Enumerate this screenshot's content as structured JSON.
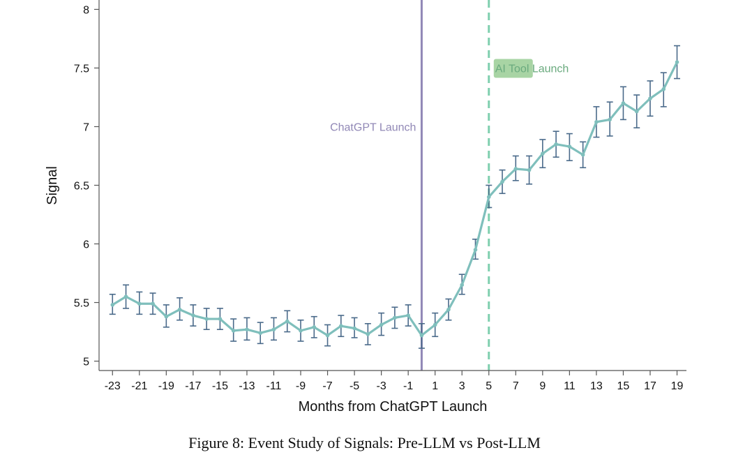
{
  "chart_data": {
    "type": "line",
    "caption": "Figure 8: Event Study of Signals: Pre-LLM vs Post-LLM",
    "xlabel": "Months from ChatGPT Launch",
    "ylabel": "Signal",
    "xlim": [
      -24,
      19.7
    ],
    "ylim": [
      4.92,
      8.08
    ],
    "yticks": [
      5,
      5.5,
      6,
      6.5,
      7,
      7.5,
      8
    ],
    "ytick_labels": [
      "5",
      "5.5",
      "6",
      "6.5",
      "7",
      "7.5",
      "8"
    ],
    "xticks": [
      -23,
      -21,
      -19,
      -17,
      -15,
      -13,
      -11,
      -9,
      -7,
      -5,
      -3,
      -1,
      1,
      3,
      5,
      7,
      9,
      11,
      13,
      15,
      17,
      19
    ],
    "xtick_labels": [
      "-23",
      "-21",
      "-19",
      "-17",
      "-15",
      "-13",
      "-11",
      "-9",
      "-7",
      "-5",
      "-3",
      "-1",
      "1",
      "3",
      "5",
      "7",
      "9",
      "11",
      "13",
      "15",
      "17",
      "19"
    ],
    "grid": false,
    "legend": "none",
    "colors": {
      "line": "#7fbfbc",
      "errorbar": "#4a6a8a",
      "chatgpt": "#9188b6",
      "ai_tool": "#7fcfae",
      "ai_tool_box": "#a8d4a4",
      "ai_tool_text": "#6aaa7e"
    },
    "annotations": [
      {
        "id": "chatgpt",
        "text": "ChatGPT Launch",
        "x": 0,
        "y": 7.0,
        "style": "solid"
      },
      {
        "id": "ai_tool",
        "text": "AI Tool Launch",
        "x": 5,
        "y": 7.5,
        "style": "dashed"
      }
    ],
    "series": [
      {
        "x": [
          -23,
          -22,
          -21,
          -20,
          -19,
          -18,
          -17,
          -16,
          -15,
          -14,
          -13,
          -12,
          -11,
          -10,
          -9,
          -8,
          -7,
          -6,
          -5,
          -4,
          -3,
          -2,
          -1,
          0,
          1,
          2,
          3,
          4,
          5,
          6,
          7,
          8,
          9,
          10,
          11,
          12,
          13,
          14,
          15,
          16,
          17,
          18,
          19
        ],
        "y": [
          5.48,
          5.55,
          5.49,
          5.49,
          5.38,
          5.44,
          5.39,
          5.36,
          5.36,
          5.26,
          5.27,
          5.24,
          5.27,
          5.34,
          5.26,
          5.29,
          5.22,
          5.3,
          5.28,
          5.23,
          5.31,
          5.37,
          5.39,
          5.22,
          5.31,
          5.44,
          5.65,
          5.95,
          6.4,
          6.53,
          6.64,
          6.63,
          6.77,
          6.85,
          6.83,
          6.76,
          7.04,
          7.06,
          7.2,
          7.13,
          7.24,
          7.32,
          7.55
        ],
        "lower": [
          5.4,
          5.45,
          5.4,
          5.4,
          5.29,
          5.35,
          5.3,
          5.27,
          5.27,
          5.17,
          5.18,
          5.15,
          5.18,
          5.25,
          5.17,
          5.2,
          5.13,
          5.21,
          5.2,
          5.14,
          5.22,
          5.28,
          5.3,
          5.11,
          5.21,
          5.35,
          5.57,
          5.87,
          6.31,
          6.43,
          6.54,
          6.51,
          6.65,
          6.74,
          6.71,
          6.65,
          6.91,
          6.92,
          7.06,
          6.99,
          7.09,
          7.17,
          7.41
        ],
        "upper": [
          5.57,
          5.65,
          5.59,
          5.58,
          5.48,
          5.54,
          5.48,
          5.45,
          5.45,
          5.36,
          5.37,
          5.33,
          5.37,
          5.43,
          5.35,
          5.38,
          5.31,
          5.39,
          5.37,
          5.32,
          5.41,
          5.46,
          5.48,
          5.32,
          5.41,
          5.53,
          5.74,
          6.04,
          6.5,
          6.63,
          6.75,
          6.75,
          6.89,
          6.96,
          6.94,
          6.87,
          7.17,
          7.21,
          7.34,
          7.27,
          7.39,
          7.46,
          7.69
        ]
      }
    ]
  }
}
